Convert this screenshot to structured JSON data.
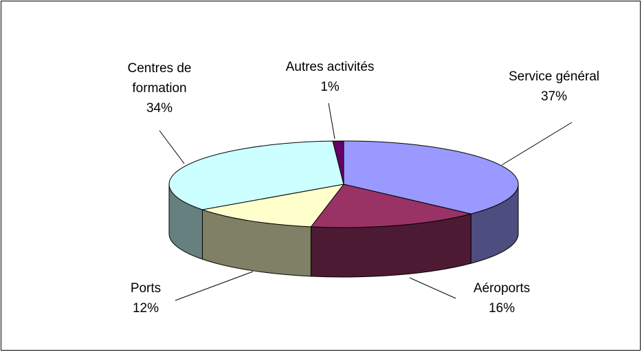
{
  "chart_data": {
    "type": "pie3d",
    "categories": [
      "Service général",
      "Aéroports",
      "Ports",
      "Centres de formation",
      "Autres activités"
    ],
    "values": [
      37,
      16,
      12,
      34,
      1
    ],
    "value_labels": [
      "37%",
      "16%",
      "12%",
      "34%",
      "1%"
    ],
    "colors": [
      "#9999ff",
      "#993366",
      "#ffffcc",
      "#ccffff",
      "#660066"
    ]
  }
}
